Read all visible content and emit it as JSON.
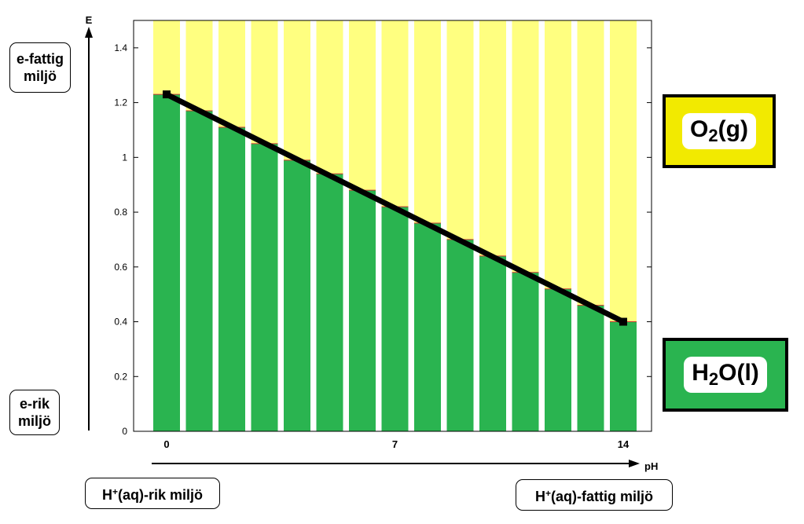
{
  "chart_data": {
    "type": "bar",
    "x": [
      0,
      1,
      2,
      3,
      4,
      5,
      6,
      7,
      8,
      9,
      10,
      11,
      12,
      13,
      14
    ],
    "xlabel": "pH",
    "ylabel": "E",
    "xticks": [
      "0",
      "7",
      "14"
    ],
    "ylim": [
      0,
      1.5
    ],
    "yticks": [
      "0",
      "0.2",
      "0.4",
      "0.6",
      "0.8",
      "1",
      "1.2",
      "1.4"
    ],
    "series": [
      {
        "name": "H2O(l)",
        "values": [
          1.23,
          1.17,
          1.11,
          1.05,
          0.99,
          0.94,
          0.88,
          0.82,
          0.76,
          0.7,
          0.64,
          0.58,
          0.52,
          0.46,
          0.4
        ]
      },
      {
        "name": "O2(g)",
        "values": [
          0.27,
          0.33,
          0.39,
          0.45,
          0.51,
          0.56,
          0.62,
          0.68,
          0.74,
          0.8,
          0.86,
          0.92,
          0.98,
          1.04,
          1.1
        ]
      }
    ],
    "boundary_line": {
      "x": [
        0,
        14
      ],
      "y": [
        1.23,
        0.4
      ]
    },
    "stacked": true,
    "grid": false
  },
  "labels": {
    "e_poor_line1": "e-fattig",
    "e_poor_line2": "miljö",
    "e_rich_line1": "e-rik",
    "e_rich_line2": "miljö",
    "h_rich_prefix": "H",
    "h_rich_sup": "+",
    "h_rich_suffix": "(aq)-rik miljö",
    "h_poor_prefix": "H",
    "h_poor_sup": "+",
    "h_poor_suffix": "(aq)-fattig miljö"
  },
  "legend": {
    "o2_main": "O",
    "o2_sub": "2",
    "o2_tail": "(g)",
    "h2o_main": "H",
    "h2o_sub": "2",
    "h2o_tail": "O(l)"
  },
  "colors": {
    "water": "#2ab450",
    "oxygen": "#ffff80",
    "o2_box": "#f2ea00",
    "h2o_box": "#2ab450",
    "line": "#000000"
  }
}
